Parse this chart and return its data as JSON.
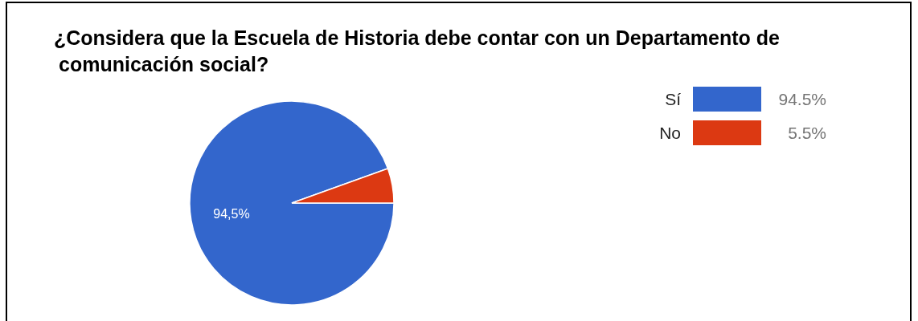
{
  "chart_data": {
    "type": "pie",
    "title": "¿Considera que la Escuela de Historia debe contar con un Departamento de comunicación social?",
    "categories": [
      "Sí",
      "No"
    ],
    "values": [
      94.5,
      5.5
    ],
    "colors": [
      "#3366cc",
      "#dc3912"
    ],
    "value_labels": [
      "94,5%",
      null
    ],
    "legend": "top right",
    "annotations": [
      "94.5%",
      "5.5%"
    ]
  }
}
